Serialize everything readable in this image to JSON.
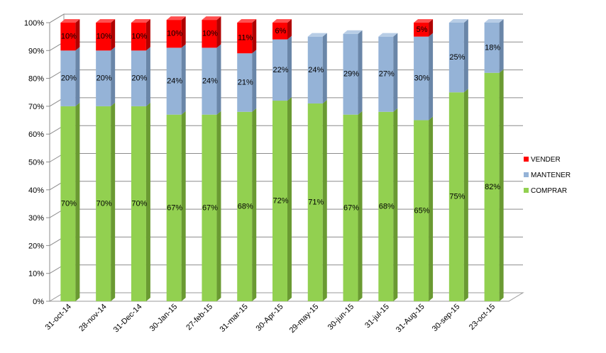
{
  "chart_data": {
    "type": "bar",
    "stacked": true,
    "three_d": true,
    "categories": [
      "31-oct-14",
      "28-nov-14",
      "31-Dec-14",
      "30-Jan-15",
      "27-feb-15",
      "31-mar-15",
      "30-Apr-15",
      "29-may-15",
      "30-jun-15",
      "31-jul-15",
      "31-Aug-15",
      "30-sep-15",
      "23-oct-15"
    ],
    "series": [
      {
        "name": "COMPRAR",
        "color": "#92d050",
        "side_color": "#6a9a32",
        "top_color": "#b4e07c",
        "values": [
          70,
          70,
          70,
          67,
          67,
          68,
          72,
          71,
          67,
          68,
          65,
          75,
          82
        ],
        "labels": [
          "70%",
          "70%",
          "70%",
          "67%",
          "67%",
          "68%",
          "72%",
          "71%",
          "67%",
          "68%",
          "65%",
          "75%",
          "82%"
        ]
      },
      {
        "name": "MANTENER",
        "color": "#95b3d7",
        "side_color": "#6a86a8",
        "top_color": "#b8cde6",
        "values": [
          20,
          20,
          20,
          24,
          24,
          21,
          22,
          24,
          29,
          27,
          30,
          25,
          18
        ],
        "labels": [
          "20%",
          "20%",
          "20%",
          "24%",
          "24%",
          "21%",
          "22%",
          "24%",
          "29%",
          "27%",
          "30%",
          "25%",
          "18%"
        ]
      },
      {
        "name": "VENDER",
        "color": "#ff0000",
        "side_color": "#b00000",
        "top_color": "#ff5050",
        "values": [
          10,
          10,
          10,
          10,
          10,
          11,
          6,
          0,
          0,
          0,
          5,
          0,
          0
        ],
        "labels": [
          "10%",
          "10%",
          "10%",
          "10%",
          "10%",
          "11%",
          "6%",
          "",
          "",
          "",
          "5%",
          "",
          ""
        ]
      }
    ],
    "legend_order": [
      "VENDER",
      "MANTENER",
      "COMPRAR"
    ],
    "y_ticks": [
      "0%",
      "10%",
      "20%",
      "30%",
      "40%",
      "50%",
      "60%",
      "70%",
      "80%",
      "90%",
      "100%"
    ],
    "ylim": [
      0,
      100
    ],
    "grid": true,
    "legend_position": "right",
    "title": "",
    "xlabel": "",
    "ylabel": ""
  }
}
